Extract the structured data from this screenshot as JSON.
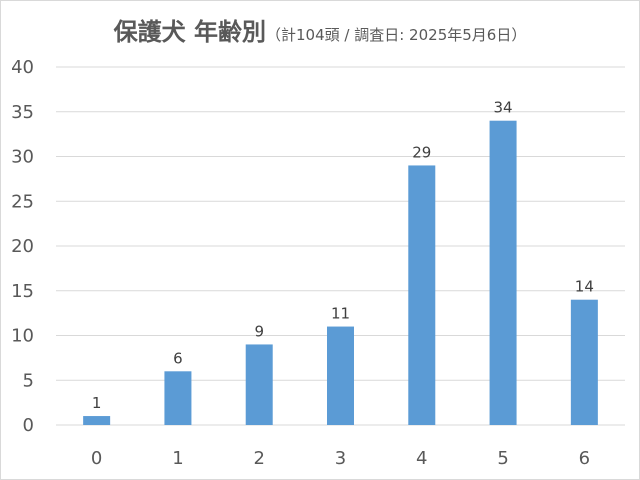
{
  "chart_data": {
    "type": "bar",
    "title": "保護犬 年齢別",
    "subtitle": "（計104頭 / 調査日: 2025年5月6日）",
    "categories": [
      "0",
      "1",
      "2",
      "3",
      "4",
      "5",
      "6"
    ],
    "values": [
      1,
      6,
      9,
      11,
      29,
      34,
      14
    ],
    "ylim": [
      0,
      40
    ],
    "yticks": [
      0,
      5,
      10,
      15,
      20,
      25,
      30,
      35,
      40
    ],
    "grid": true,
    "legend": "none",
    "bar_color": "#5b9bd5",
    "grid_color": "#d9d9d9",
    "text_color": "#595959"
  }
}
